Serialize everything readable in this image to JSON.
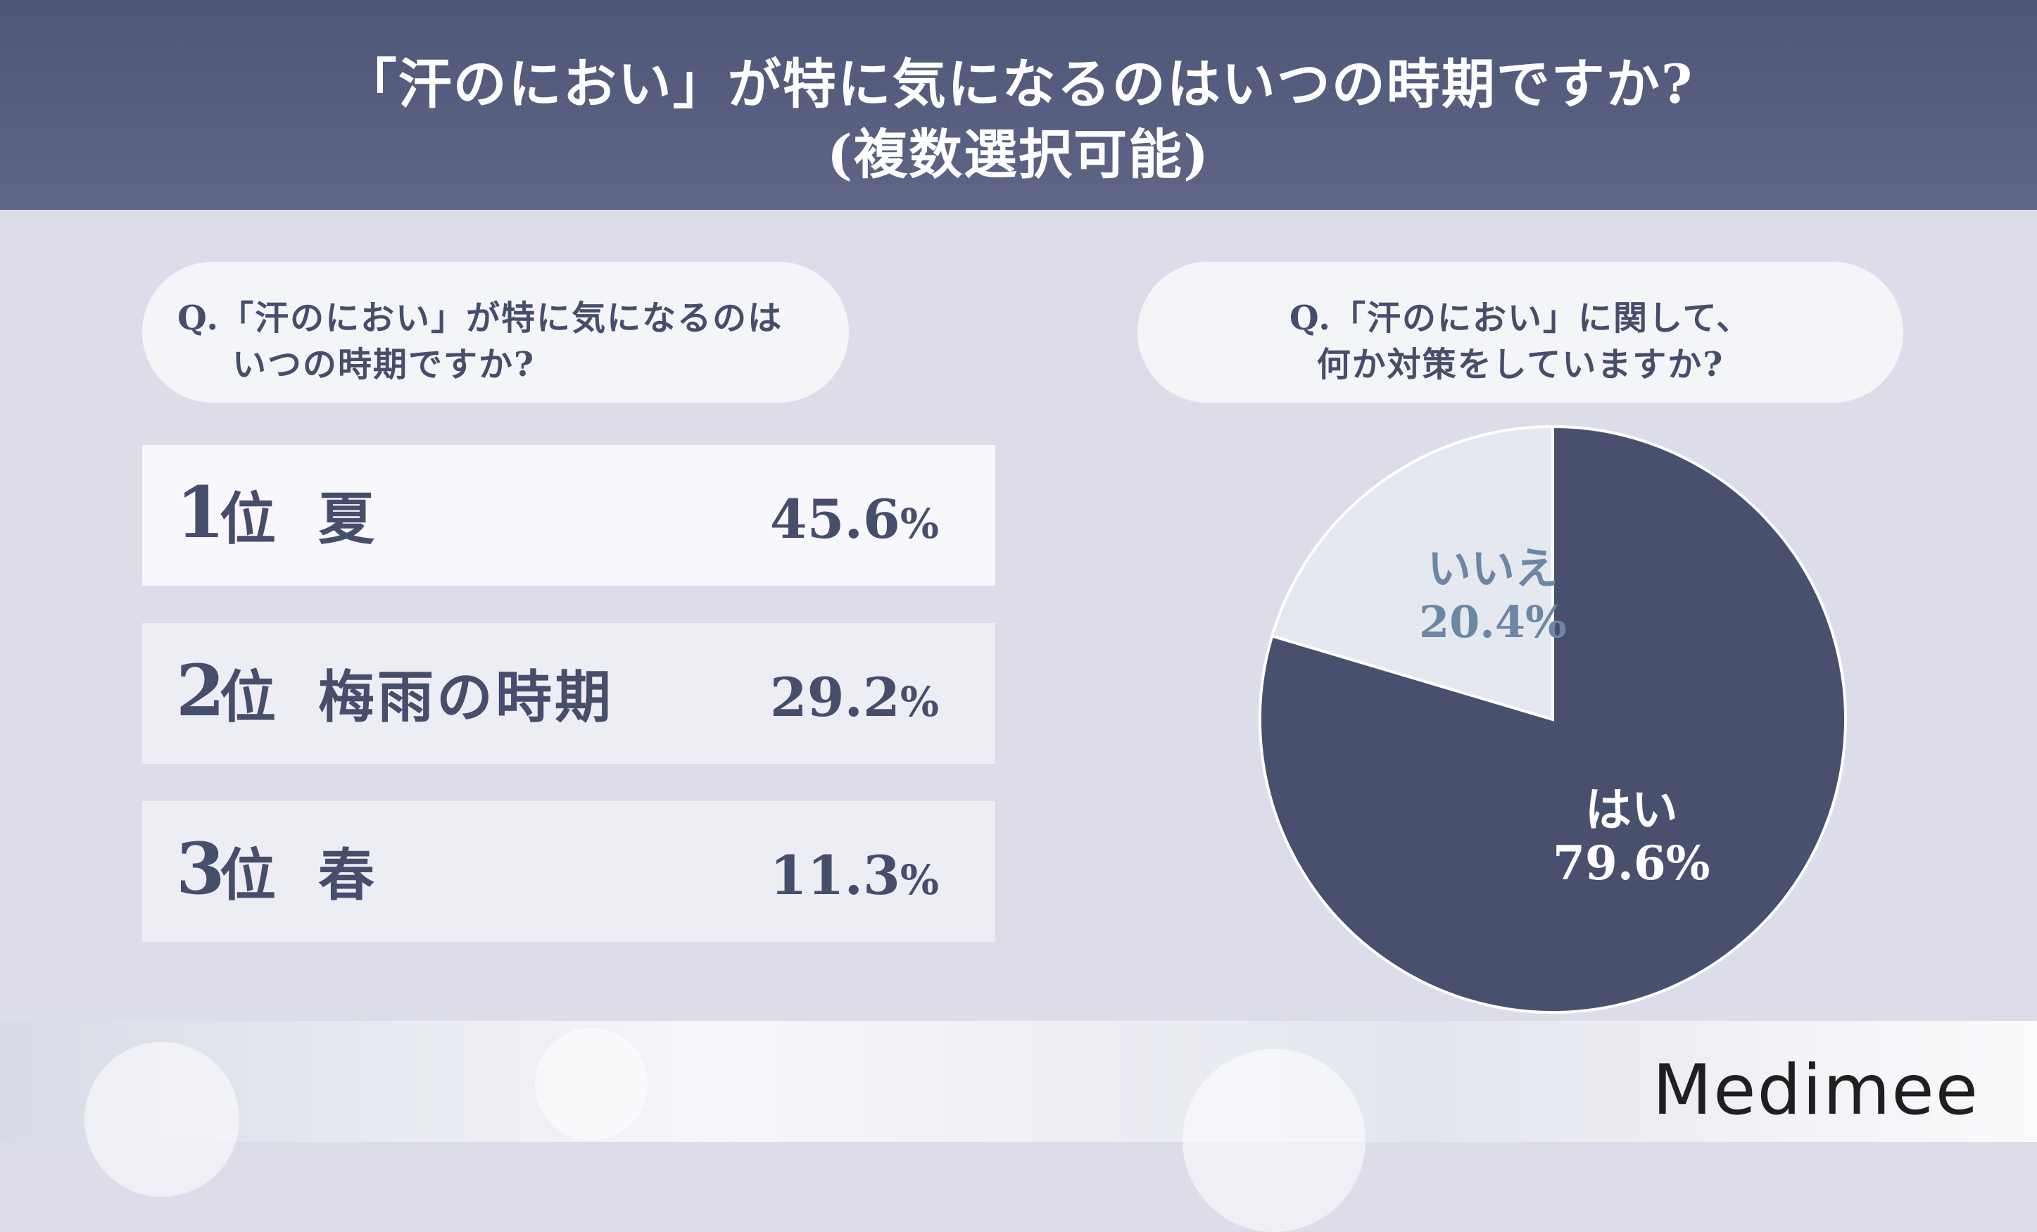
{
  "header": {
    "title_line1": "「汗のにおい」が特に気になるのはいつの時期ですか?",
    "title_line2": "(複数選択可能)"
  },
  "left_question": {
    "line1": "Q.「汗のにおい」が特に気になるのは",
    "line2": "いつの時期ですか?"
  },
  "right_question": {
    "line1": "Q.「汗のにおい」に関して、",
    "line2": "何か対策をしていますか?"
  },
  "ranking": [
    {
      "rank": "1",
      "suffix": "位",
      "label": "夏",
      "value": "45.6",
      "unit": "%"
    },
    {
      "rank": "2",
      "suffix": "位",
      "label": "梅雨の時期",
      "value": "29.2",
      "unit": "%"
    },
    {
      "rank": "3",
      "suffix": "位",
      "label": "春",
      "value": "11.3",
      "unit": "%"
    }
  ],
  "chart_data": [
    {
      "type": "table",
      "columns": [
        "rank",
        "season",
        "percent"
      ],
      "rows": [
        [
          "1位",
          "夏",
          45.6
        ],
        [
          "2位",
          "梅雨の時期",
          29.2
        ],
        [
          "3位",
          "春",
          11.3
        ]
      ]
    },
    {
      "type": "pie",
      "slices": [
        {
          "label": "はい",
          "value": 79.6,
          "display": "79.6%",
          "color": "#49506d"
        },
        {
          "label": "いいえ",
          "value": 20.4,
          "display": "20.4%",
          "color": "#e6e8ef"
        }
      ]
    }
  ],
  "logo": {
    "text": "Medimee"
  }
}
